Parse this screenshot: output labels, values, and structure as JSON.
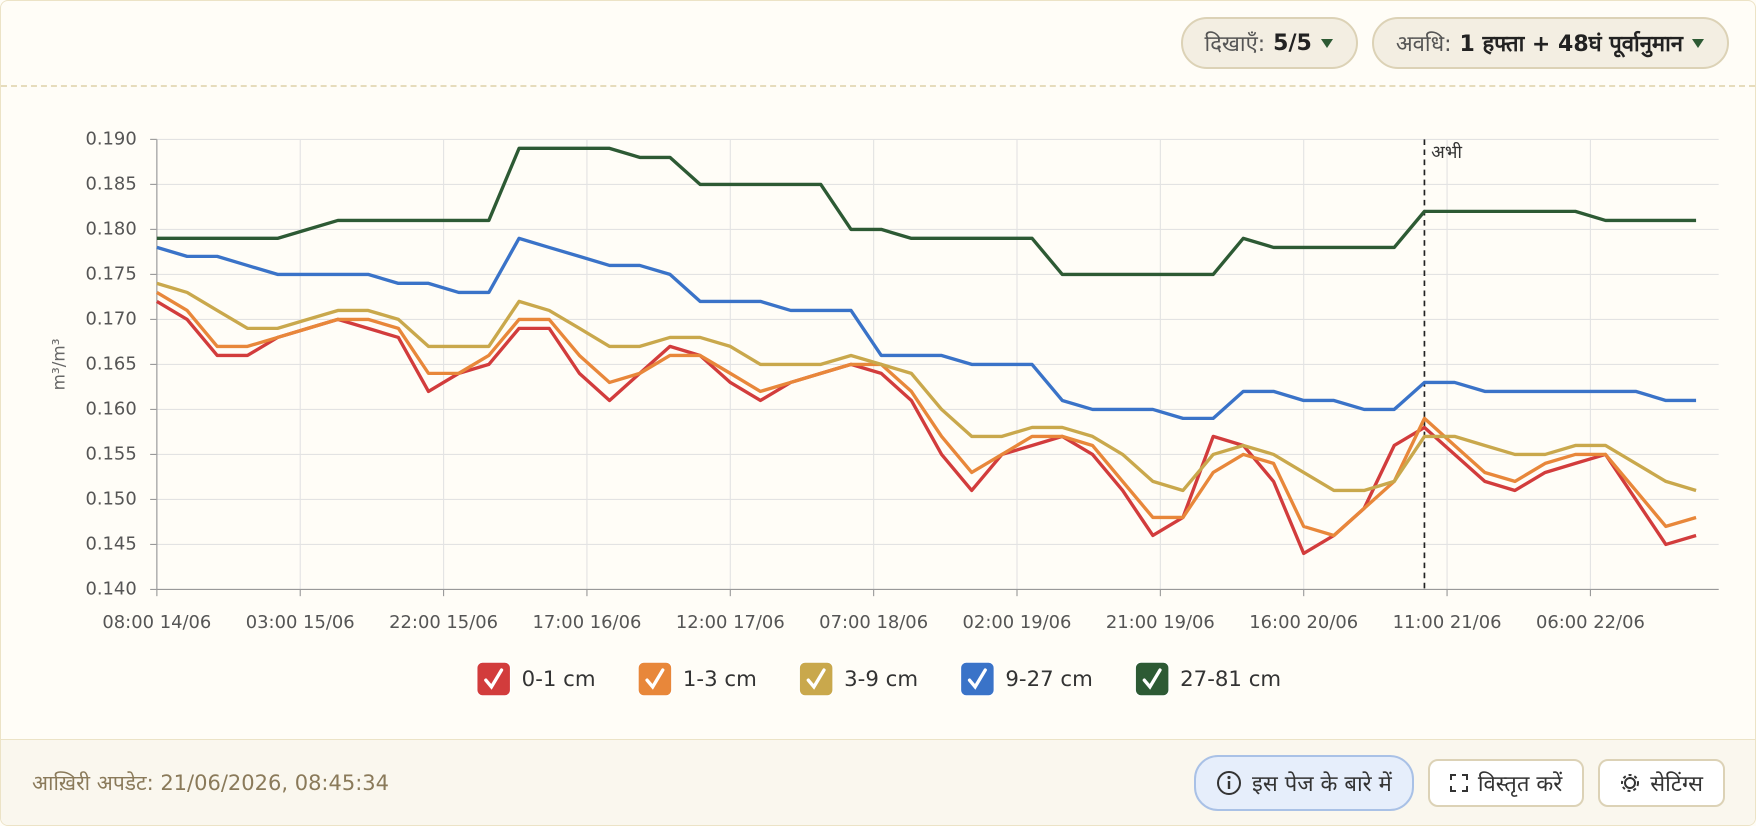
{
  "header": {
    "show_label": "दिखाएँ:",
    "show_value": "5/5",
    "period_label": "अवधि:",
    "period_value": "1 हफ्ता + 48घं पूर्वानुमान"
  },
  "chart_data": {
    "type": "line",
    "y_label": "m³/m³",
    "x": [
      "08:00 14/06",
      "12:00 14/06",
      "16:00 14/06",
      "20:00 14/06",
      "00:00 15/06",
      "04:00 15/06",
      "08:00 15/06",
      "12:00 15/06",
      "16:00 15/06",
      "20:00 15/06",
      "00:00 16/06",
      "04:00 16/06",
      "08:00 16/06",
      "12:00 16/06",
      "16:00 16/06",
      "20:00 16/06",
      "00:00 17/06",
      "04:00 17/06",
      "08:00 17/06",
      "12:00 17/06",
      "16:00 17/06",
      "20:00 17/06",
      "00:00 18/06",
      "04:00 18/06",
      "08:00 18/06",
      "12:00 18/06",
      "16:00 18/06",
      "20:00 18/06",
      "00:00 19/06",
      "04:00 19/06",
      "08:00 19/06",
      "12:00 19/06",
      "16:00 19/06",
      "20:00 19/06",
      "00:00 20/06",
      "04:00 20/06",
      "08:00 20/06",
      "12:00 20/06",
      "16:00 20/06",
      "20:00 20/06",
      "00:00 21/06",
      "04:00 21/06",
      "08:00 21/06",
      "12:00 21/06",
      "16:00 21/06",
      "20:00 21/06",
      "00:00 22/06",
      "04:00 22/06",
      "08:00 22/06",
      "12:00 22/06",
      "16:00 22/06",
      "20:00 22/06"
    ],
    "xlim": [
      "08:00 14/06",
      "23:00 22/06"
    ],
    "xticks": [
      "08:00 14/06",
      "03:00 15/06",
      "22:00 15/06",
      "17:00 16/06",
      "12:00 17/06",
      "07:00 18/06",
      "02:00 19/06",
      "21:00 19/06",
      "16:00 20/06",
      "11:00 21/06",
      "06:00 22/06"
    ],
    "ylim": [
      0.14,
      0.19
    ],
    "yticks": [
      {
        "value": 0.14,
        "label": "0.140"
      },
      0.145,
      {
        "value": 0.15,
        "label": "0.150"
      },
      0.155,
      {
        "value": 0.16,
        "label": "0.160"
      },
      0.165,
      {
        "value": 0.17,
        "label": "0.170"
      },
      0.175,
      {
        "value": 0.18,
        "label": "0.180"
      },
      0.185,
      {
        "value": 0.19,
        "label": "0.190"
      }
    ],
    "grid": true,
    "legend": "bottom",
    "now_marker": {
      "x": "08:00 21/06",
      "label": "अभी"
    },
    "series": [
      {
        "name": "0-1 cm",
        "color": "#d23c3c",
        "values": [
          0.172,
          0.17,
          0.166,
          0.166,
          0.168,
          0.169,
          0.17,
          0.169,
          0.168,
          0.162,
          0.164,
          0.165,
          0.169,
          0.169,
          0.164,
          0.161,
          0.164,
          0.167,
          0.166,
          0.163,
          0.161,
          0.163,
          0.164,
          0.165,
          0.164,
          0.161,
          0.155,
          0.151,
          0.155,
          0.156,
          0.157,
          0.155,
          0.151,
          0.146,
          0.148,
          0.157,
          0.156,
          0.152,
          0.144,
          0.146,
          0.149,
          0.156,
          0.158,
          0.155,
          0.152,
          0.151,
          0.153,
          0.154,
          0.155,
          0.15,
          0.145,
          0.146
        ]
      },
      {
        "name": "1-3 cm",
        "color": "#e8873a",
        "values": [
          0.173,
          0.171,
          0.167,
          0.167,
          0.168,
          0.169,
          0.17,
          0.17,
          0.169,
          0.164,
          0.164,
          0.166,
          0.17,
          0.17,
          0.166,
          0.163,
          0.164,
          0.166,
          0.166,
          0.164,
          0.162,
          0.163,
          0.164,
          0.165,
          0.165,
          0.162,
          0.157,
          0.153,
          0.155,
          0.157,
          0.157,
          0.156,
          0.152,
          0.148,
          0.148,
          0.153,
          0.155,
          0.154,
          0.147,
          0.146,
          0.149,
          0.152,
          0.159,
          0.156,
          0.153,
          0.152,
          0.154,
          0.155,
          0.155,
          0.151,
          0.147,
          0.148
        ]
      },
      {
        "name": "3-9 cm",
        "color": "#c9a84c",
        "values": [
          0.174,
          0.173,
          0.171,
          0.169,
          0.169,
          0.17,
          0.171,
          0.171,
          0.17,
          0.167,
          0.167,
          0.167,
          0.172,
          0.171,
          0.169,
          0.167,
          0.167,
          0.168,
          0.168,
          0.167,
          0.165,
          0.165,
          0.165,
          0.166,
          0.165,
          0.164,
          0.16,
          0.157,
          0.157,
          0.158,
          0.158,
          0.157,
          0.155,
          0.152,
          0.151,
          0.155,
          0.156,
          0.155,
          0.153,
          0.151,
          0.151,
          0.152,
          0.157,
          0.157,
          0.156,
          0.155,
          0.155,
          0.156,
          0.156,
          0.154,
          0.152,
          0.151
        ]
      },
      {
        "name": "9-27 cm",
        "color": "#3a73c8",
        "values": [
          0.178,
          0.177,
          0.177,
          0.176,
          0.175,
          0.175,
          0.175,
          0.175,
          0.174,
          0.174,
          0.173,
          0.173,
          0.179,
          0.178,
          0.177,
          0.176,
          0.176,
          0.175,
          0.172,
          0.172,
          0.172,
          0.171,
          0.171,
          0.171,
          0.166,
          0.166,
          0.166,
          0.165,
          0.165,
          0.165,
          0.161,
          0.16,
          0.16,
          0.16,
          0.159,
          0.159,
          0.162,
          0.162,
          0.161,
          0.161,
          0.16,
          0.16,
          0.163,
          0.163,
          0.162,
          0.162,
          0.162,
          0.162,
          0.162,
          0.162,
          0.161,
          0.161
        ]
      },
      {
        "name": "27-81 cm",
        "color": "#2d5a34",
        "values": [
          0.179,
          0.179,
          0.179,
          0.179,
          0.179,
          0.18,
          0.181,
          0.181,
          0.181,
          0.181,
          0.181,
          0.181,
          0.189,
          0.189,
          0.189,
          0.189,
          0.188,
          0.188,
          0.185,
          0.185,
          0.185,
          0.185,
          0.185,
          0.18,
          0.18,
          0.179,
          0.179,
          0.179,
          0.179,
          0.179,
          0.175,
          0.175,
          0.175,
          0.175,
          0.175,
          0.175,
          0.179,
          0.178,
          0.178,
          0.178,
          0.178,
          0.178,
          0.182,
          0.182,
          0.182,
          0.182,
          0.182,
          0.182,
          0.181,
          0.181,
          0.181,
          0.181
        ]
      }
    ]
  },
  "footer": {
    "last_update": "आख़िरी अपडेट: 21/06/2026, 08:45:34",
    "buttons": [
      "इस पेज के बारे में",
      "विस्तृत करें",
      "सेटिंग्स"
    ]
  }
}
